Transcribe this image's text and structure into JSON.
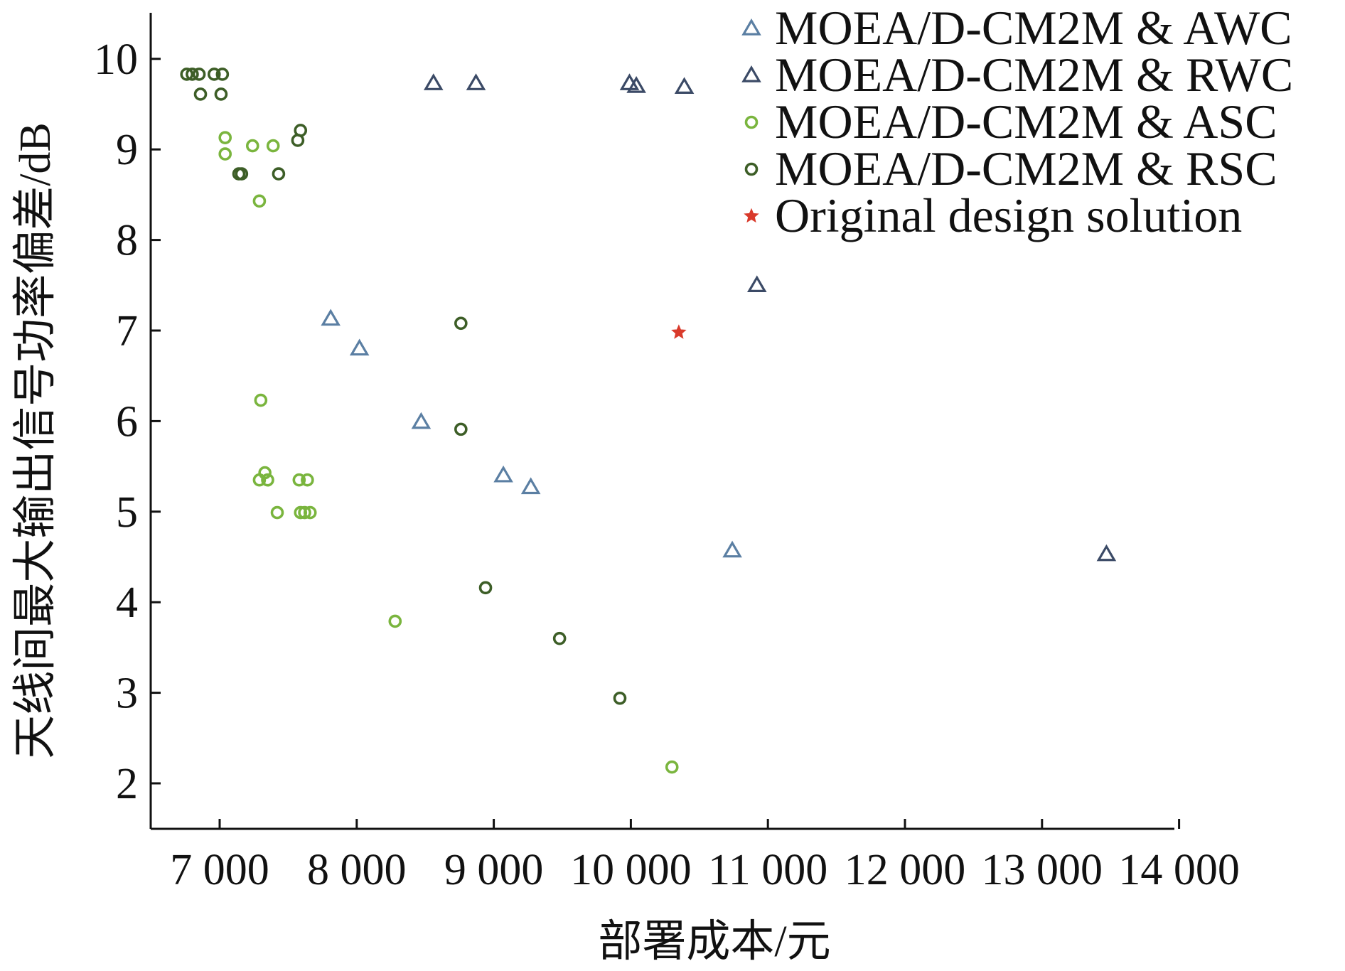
{
  "chart_data": {
    "type": "scatter",
    "title": "",
    "xlabel": "部署成本/元",
    "ylabel": "天线间最大输出信号功率偏差/dB",
    "xlim": [
      6500,
      14000
    ],
    "ylim": [
      1.5,
      10.5
    ],
    "xticks": [
      7000,
      8000,
      9000,
      10000,
      11000,
      12000,
      13000,
      14000
    ],
    "xtick_labels": [
      "7 000",
      "8 000",
      "9 000",
      "10 000",
      "11 000",
      "12 000",
      "13 000",
      "14 000"
    ],
    "yticks": [
      2,
      3,
      4,
      5,
      6,
      7,
      8,
      9,
      10
    ],
    "ytick_labels": [
      "2",
      "3",
      "4",
      "5",
      "6",
      "7",
      "8",
      "9",
      "10"
    ],
    "grid": false,
    "legend_position": "top-right",
    "series": [
      {
        "name": "MOEA/D-CM2M & AWC",
        "marker": "triangle",
        "color": "#5b7fa3",
        "points": [
          [
            7810,
            7.13
          ],
          [
            8020,
            6.8
          ],
          [
            8470,
            5.99
          ],
          [
            9070,
            5.4
          ],
          [
            9270,
            5.27
          ],
          [
            10740,
            4.57
          ]
        ]
      },
      {
        "name": "MOEA/D-CM2M & RWC",
        "marker": "triangle",
        "color": "#3b4a66",
        "points": [
          [
            8560,
            9.73
          ],
          [
            8870,
            9.73
          ],
          [
            9990,
            9.73
          ],
          [
            10040,
            9.7
          ],
          [
            10390,
            9.69
          ],
          [
            10920,
            7.5
          ],
          [
            13470,
            4.53
          ]
        ]
      },
      {
        "name": "MOEA/D-CM2M & ASC",
        "marker": "circle",
        "color": "#7ab53e",
        "points": [
          [
            7040,
            9.13
          ],
          [
            7040,
            8.95
          ],
          [
            7240,
            9.04
          ],
          [
            7390,
            9.04
          ],
          [
            7290,
            8.43
          ],
          [
            7300,
            6.23
          ],
          [
            7290,
            5.35
          ],
          [
            7330,
            5.43
          ],
          [
            7350,
            5.35
          ],
          [
            7580,
            5.35
          ],
          [
            7640,
            5.35
          ],
          [
            7420,
            4.99
          ],
          [
            7590,
            4.99
          ],
          [
            7620,
            4.99
          ],
          [
            7660,
            4.99
          ],
          [
            8280,
            3.79
          ],
          [
            10300,
            2.18
          ]
        ]
      },
      {
        "name": "MOEA/D-CM2M & RSC",
        "marker": "circle",
        "color": "#3d5e27",
        "points": [
          [
            6760,
            9.83
          ],
          [
            6800,
            9.83
          ],
          [
            6850,
            9.83
          ],
          [
            6960,
            9.83
          ],
          [
            7020,
            9.83
          ],
          [
            6860,
            9.61
          ],
          [
            7010,
            9.61
          ],
          [
            7590,
            9.21
          ],
          [
            7570,
            9.1
          ],
          [
            7140,
            8.73
          ],
          [
            7160,
            8.73
          ],
          [
            7430,
            8.73
          ],
          [
            8760,
            7.08
          ],
          [
            8760,
            5.91
          ],
          [
            8940,
            4.16
          ],
          [
            9480,
            3.6
          ],
          [
            9920,
            2.94
          ]
        ]
      },
      {
        "name": "Original design solution",
        "marker": "star",
        "color": "#d93a2b",
        "points": [
          [
            10350,
            6.98
          ]
        ]
      }
    ]
  }
}
